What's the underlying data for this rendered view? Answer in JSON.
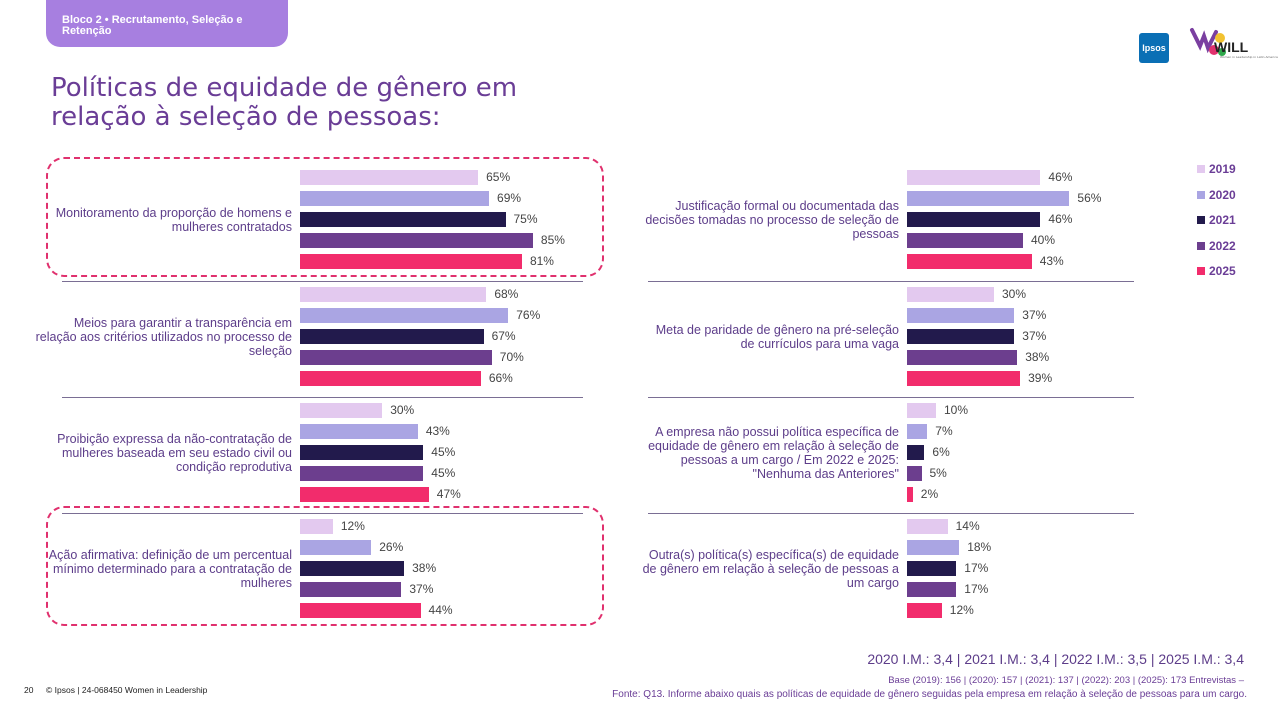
{
  "header": {
    "tag": "Bloco 2 • Recrutamento, Seleção e Retenção",
    "title": "Políticas de equidade de gênero em relação à seleção de pessoas:",
    "logo_ipsos": "Ipsos",
    "logo_will": "WILL",
    "logo_will_sub": "Women in Leadership in Latin America"
  },
  "colors": {
    "2019": "#e3c9ef",
    "2020": "#aaa5e3",
    "2021": "#221a4c",
    "2022": "#6c3e8e",
    "2025": "#f22c6c"
  },
  "chart_data": {
    "type": "bar",
    "orientation": "horizontal",
    "series_names": [
      "2019",
      "2020",
      "2021",
      "2022",
      "2025"
    ],
    "unit": "%",
    "groups": [
      {
        "label": "Monitoramento da proporção de homens e mulheres contratados",
        "values": [
          65,
          69,
          75,
          85,
          81
        ],
        "highlighted": true
      },
      {
        "label": "Meios para garantir a transparência em relação aos critérios utilizados no processo de seleção",
        "values": [
          68,
          76,
          67,
          70,
          66
        ],
        "highlighted": false
      },
      {
        "label": "Proibição expressa da não-contratação de mulheres baseada em seu estado civil ou condição reprodutiva",
        "values": [
          30,
          43,
          45,
          45,
          47
        ],
        "highlighted": false
      },
      {
        "label": "Ação afirmativa: definição de um percentual mínimo determinado para a contratação de mulheres",
        "values": [
          12,
          26,
          38,
          37,
          44
        ],
        "highlighted": true
      },
      {
        "label": "Justificação formal ou documentada das decisões tomadas no processo de seleção de pessoas",
        "values": [
          46,
          56,
          46,
          40,
          43
        ],
        "highlighted": false
      },
      {
        "label": "Meta de paridade de gênero na pré-seleção de currículos para uma vaga",
        "values": [
          30,
          37,
          37,
          38,
          39
        ],
        "highlighted": false
      },
      {
        "label": "A empresa não possui política específica de equidade de gênero em relação à seleção de pessoas a um cargo / Em 2022 e 2025: \"Nenhuma das Anteriores\"",
        "values": [
          10,
          7,
          6,
          5,
          2
        ],
        "highlighted": false
      },
      {
        "label": "Outra(s) política(s) específica(s) de equidade de gênero em relação à seleção de pessoas a um cargo",
        "values": [
          14,
          18,
          17,
          17,
          12
        ],
        "highlighted": false
      }
    ],
    "legend": [
      "2019",
      "2020",
      "2021",
      "2022",
      "2025"
    ],
    "legend_position": "top-right"
  },
  "footer": {
    "im": "2020 I.M.: 3,4 | 2021 I.M.: 3,4 | 2022 I.M.: 3,5 | 2025 I.M.: 3,4",
    "base": "Base (2019): 156 | (2020): 157 | (2021): 137 | (2022): 203  | (2025): 173 Entrevistas –",
    "fonte": "Fonte: Q13. Informe abaixo quais as políticas de equidade de gênero seguidas pela empresa em relação à seleção de pessoas para um cargo.",
    "page": "20",
    "copyright": "© Ipsos | 24-068450 Women in Leadership"
  }
}
